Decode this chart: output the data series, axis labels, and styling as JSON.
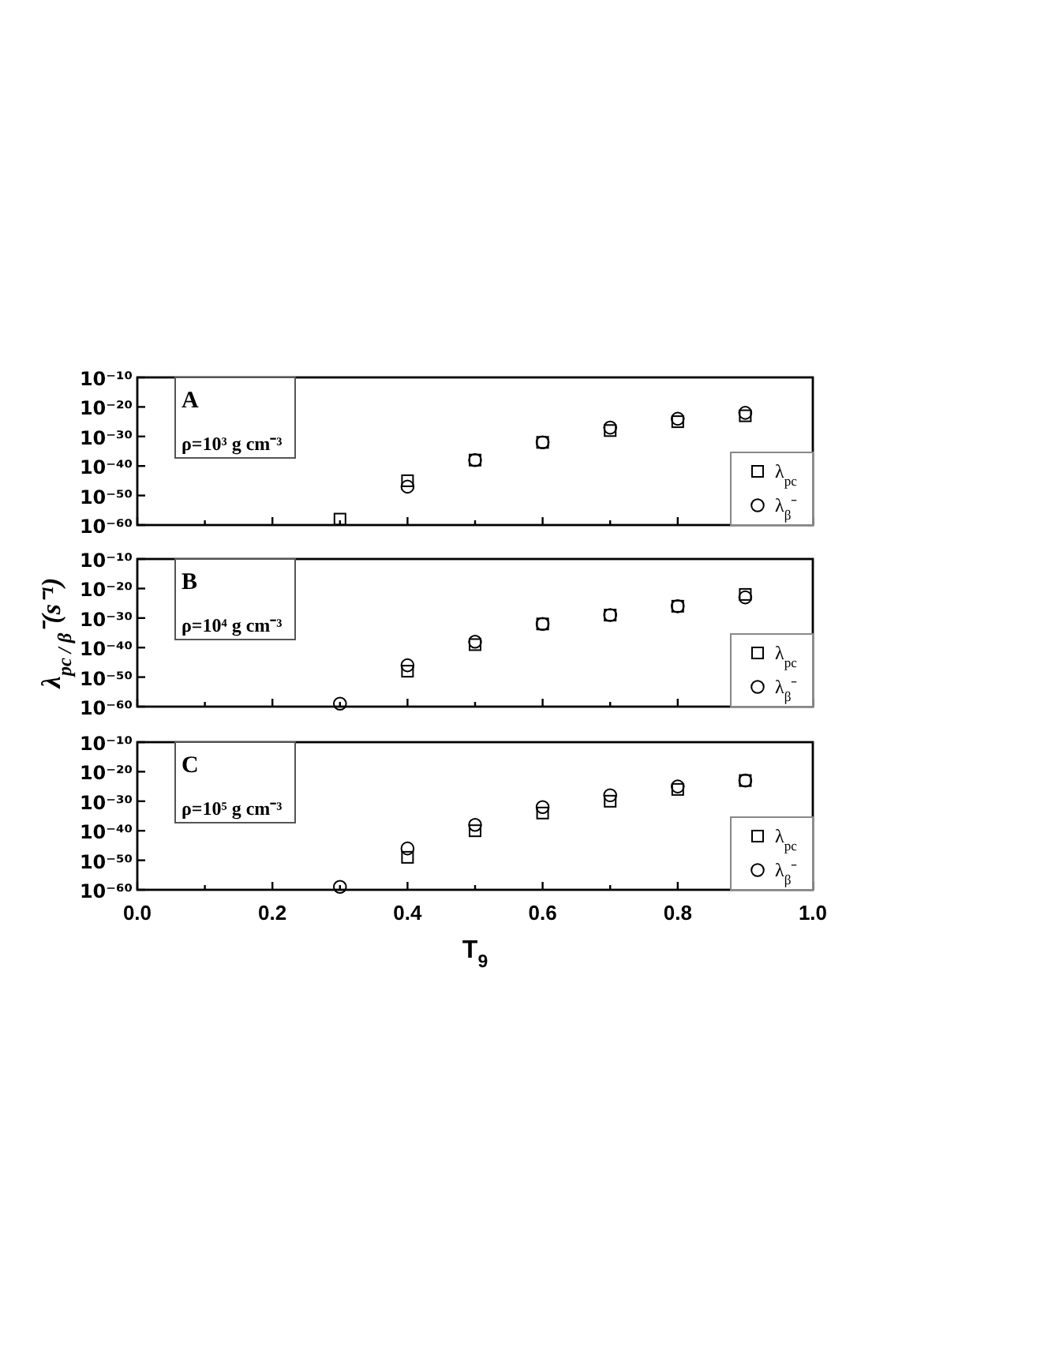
{
  "chart_data": [
    {
      "type": "scatter",
      "x": [
        0.3,
        0.4,
        0.5,
        0.6,
        0.7,
        0.8,
        0.9
      ],
      "series": [
        {
          "name": "λ$_{pc}$",
          "color": "#000000",
          "marker": "square",
          "values": [
            1e-58,
            1e-45,
            1e-38,
            1e-32,
            1e-28,
            1e-25,
            1e-23
          ]
        },
        {
          "name": "λ$_{β}$⁻",
          "color": "#000000",
          "marker": "circle",
          "values": [
            null,
            1e-47,
            1e-38,
            1e-32,
            1e-27,
            1e-24,
            1e-22
          ]
        }
      ],
      "xlim": [
        0,
        1
      ],
      "xticks": [
        {
          "value": 0,
          "label": null
        },
        {
          "value": 0.1,
          "label": null
        },
        {
          "value": 0.2,
          "label": null
        },
        {
          "value": 0.3,
          "label": null
        },
        {
          "value": 0.4,
          "label": null
        },
        {
          "value": 0.5,
          "label": null
        },
        {
          "value": 0.6,
          "label": null
        },
        {
          "value": 0.7,
          "label": null
        },
        {
          "value": 0.8,
          "label": null
        },
        {
          "value": 0.9,
          "label": null
        },
        {
          "value": 1,
          "label": null
        }
      ],
      "ylim": [
        1e-60,
        1e-10
      ],
      "yticks": [
        {
          "value": 1e-60,
          "label": "10⁻⁶⁰"
        },
        {
          "value": 1e-50,
          "label": "10⁻⁵⁰"
        },
        {
          "value": 1e-40,
          "label": "10⁻⁴⁰"
        },
        {
          "value": 1e-30,
          "label": "10⁻³⁰"
        },
        {
          "value": 1e-20,
          "label": "10⁻²⁰"
        },
        {
          "value": 1e-10,
          "label": "10⁻¹⁰"
        }
      ],
      "log": "y",
      "tick_labels": "y",
      "legend": "bottom right",
      "annotations": [
        "A",
        "ρ=10³ g cm⁻³"
      ]
    },
    {
      "type": "scatter",
      "x": [
        0.3,
        0.4,
        0.5,
        0.6,
        0.7,
        0.8,
        0.9
      ],
      "series": [
        {
          "name": "λ$_{pc}$",
          "color": "#000000",
          "marker": "square",
          "values": [
            null,
            1e-48,
            1e-39,
            1e-32,
            1e-29,
            1e-26,
            1e-22
          ]
        },
        {
          "name": "λ$_{β}$⁻",
          "color": "#000000",
          "marker": "circle",
          "values": [
            1e-59,
            1e-46,
            1e-38,
            1e-32,
            1e-29,
            1e-26,
            1e-23
          ]
        }
      ],
      "xlim": [
        0,
        1
      ],
      "xticks": [
        {
          "value": 0,
          "label": null
        },
        {
          "value": 0.1,
          "label": null
        },
        {
          "value": 0.2,
          "label": null
        },
        {
          "value": 0.3,
          "label": null
        },
        {
          "value": 0.4,
          "label": null
        },
        {
          "value": 0.5,
          "label": null
        },
        {
          "value": 0.6,
          "label": null
        },
        {
          "value": 0.7,
          "label": null
        },
        {
          "value": 0.8,
          "label": null
        },
        {
          "value": 0.9,
          "label": null
        },
        {
          "value": 1,
          "label": null
        }
      ],
      "ylim": [
        1e-60,
        1e-10
      ],
      "yticks": [
        {
          "value": 1e-60,
          "label": "10⁻⁶⁰"
        },
        {
          "value": 1e-50,
          "label": "10⁻⁵⁰"
        },
        {
          "value": 1e-40,
          "label": "10⁻⁴⁰"
        },
        {
          "value": 1e-30,
          "label": "10⁻³⁰"
        },
        {
          "value": 1e-20,
          "label": "10⁻²⁰"
        },
        {
          "value": 1e-10,
          "label": "10⁻¹⁰"
        }
      ],
      "log": "y",
      "tick_labels": "y",
      "legend": "bottom right",
      "ylabel": "λ$_{pc / β}$⁻(s⁻¹)",
      "annotations": [
        "B",
        "ρ=10⁴ g cm⁻³"
      ]
    },
    {
      "type": "scatter",
      "x": [
        0.3,
        0.4,
        0.5,
        0.6,
        0.7,
        0.8,
        0.9
      ],
      "series": [
        {
          "name": "λ$_{pc}$",
          "color": "#000000",
          "marker": "square",
          "values": [
            null,
            1e-49,
            1e-40,
            1e-34,
            1e-30,
            1e-26,
            1e-23
          ]
        },
        {
          "name": "λ$_{β}$⁻",
          "color": "#000000",
          "marker": "circle",
          "values": [
            1e-59,
            1e-46,
            1e-38,
            1e-32,
            1e-28,
            1e-25,
            1e-23
          ]
        }
      ],
      "xlim": [
        0,
        1
      ],
      "xticks": [
        {
          "value": 0,
          "label": "0.0"
        },
        {
          "value": 0.1,
          "label": null
        },
        {
          "value": 0.2,
          "label": "0.2"
        },
        {
          "value": 0.3,
          "label": null
        },
        {
          "value": 0.4,
          "label": "0.4"
        },
        {
          "value": 0.5,
          "label": null
        },
        {
          "value": 0.6,
          "label": "0.6"
        },
        {
          "value": 0.7,
          "label": null
        },
        {
          "value": 0.8,
          "label": "0.8"
        },
        {
          "value": 0.9,
          "label": null
        },
        {
          "value": 1,
          "label": "1.0"
        }
      ],
      "ylim": [
        1e-60,
        1e-10
      ],
      "yticks": [
        {
          "value": 1e-60,
          "label": "10⁻⁶⁰"
        },
        {
          "value": 1e-50,
          "label": "10⁻⁵⁰"
        },
        {
          "value": 1e-40,
          "label": "10⁻⁴⁰"
        },
        {
          "value": 1e-30,
          "label": "10⁻³⁰"
        },
        {
          "value": 1e-20,
          "label": "10⁻²⁰"
        },
        {
          "value": 1e-10,
          "label": "10⁻¹⁰"
        }
      ],
      "log": "y",
      "legend": "bottom right",
      "xlabel": "T$_{9}$",
      "annotations": [
        "C",
        "ρ=10⁵ g cm⁻³"
      ]
    }
  ]
}
